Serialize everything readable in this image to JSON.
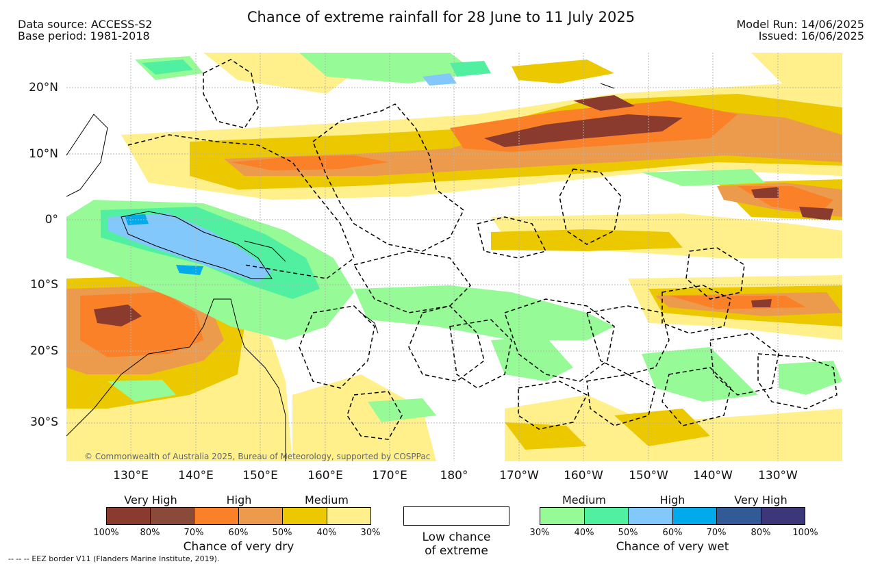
{
  "header": {
    "title": "Chance of extreme rainfall for 28 June to 11 July 2025",
    "data_source": "Data source: ACCESS-S2",
    "base_period": "Base period: 1981-2018",
    "model_run": "Model Run: 14/06/2025",
    "issued": "Issued: 16/06/2025"
  },
  "map": {
    "lat_labels": [
      "20°N",
      "10°N",
      "0°",
      "10°S",
      "20°S",
      "30°S"
    ],
    "lon_labels": [
      "130°E",
      "140°E",
      "150°E",
      "160°E",
      "170°E",
      "180°",
      "170°W",
      "160°W",
      "150°W",
      "140°W",
      "130°W"
    ],
    "credit": "© Commonwealth of Australia 2025, Bureau of Meteorology, supported by COSPPac",
    "colors": {
      "dry_100_80": "#8b3a2e",
      "dry_80_70": "#8a4a3a",
      "dry_70_60": "#fa8128",
      "dry_60_50": "#eb9b4b",
      "dry_50_40": "#ebc800",
      "dry_40_30": "#fff08c",
      "wet_30_40": "#96fa96",
      "wet_40_50": "#50f0a0",
      "wet_50_60": "#82c8fa",
      "wet_60_70": "#00aaeb",
      "wet_70_80": "#325a96",
      "wet_80_100": "#3c3778"
    }
  },
  "legend": {
    "dry": {
      "bands": [
        "Very High",
        "High",
        "Medium"
      ],
      "ticks": [
        "100%",
        "80%",
        "70%",
        "60%",
        "50%",
        "40%",
        "30%"
      ],
      "swatches": [
        "#8b3a2e",
        "#8a4a3a",
        "#fa8128",
        "#eb9b4b",
        "#ebc800",
        "#fff08c"
      ],
      "caption": "Chance of very dry"
    },
    "low": {
      "caption_line1": "Low chance",
      "caption_line2": "of extreme"
    },
    "wet": {
      "bands": [
        "Medium",
        "High",
        "Very High"
      ],
      "ticks": [
        "30%",
        "40%",
        "50%",
        "60%",
        "70%",
        "80%",
        "100%"
      ],
      "swatches": [
        "#96fa96",
        "#50f0a0",
        "#82c8fa",
        "#00aaeb",
        "#325a96",
        "#3c3778"
      ],
      "caption": "Chance of very wet"
    }
  },
  "footer": {
    "eez_note": "EEZ border V11 (Flanders Marine Institute, 2019).",
    "eez_dash": "--  --  --"
  }
}
